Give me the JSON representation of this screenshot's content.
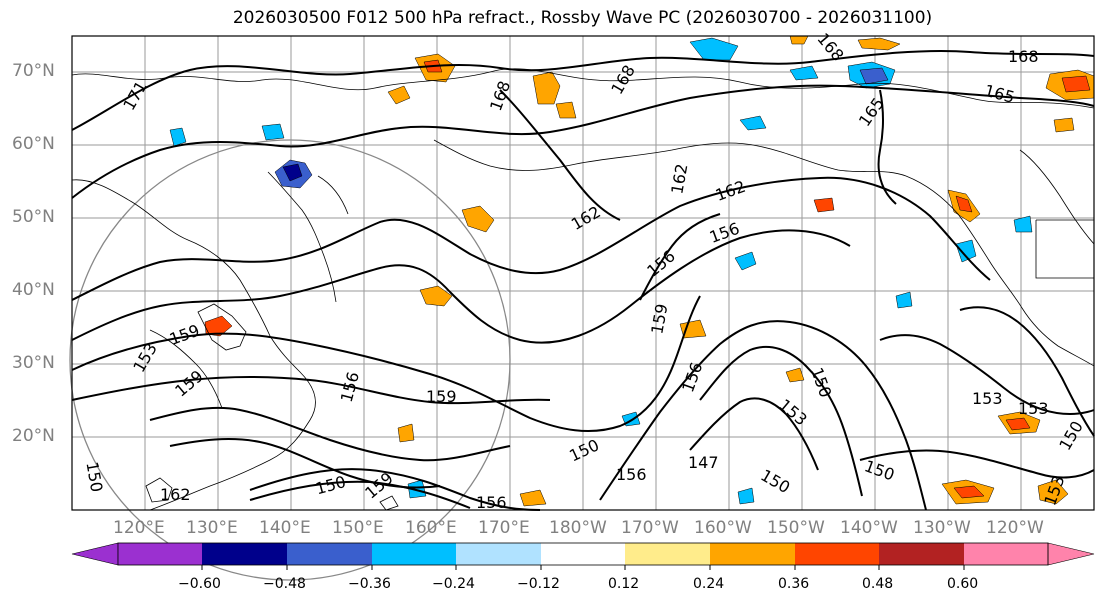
{
  "title": "2026030500 F012 500 hPa refract., Rossby Wave PC (2026030700 - 2026031100)",
  "lat_labels": [
    "70°N",
    "60°N",
    "50°N",
    "40°N",
    "30°N",
    "20°N"
  ],
  "lon_labels": [
    "120°E",
    "130°E",
    "140°E",
    "150°E",
    "160°E",
    "170°E",
    "180°W",
    "170°W",
    "160°W",
    "150°W",
    "140°W",
    "130°W",
    "120°W"
  ],
  "contour_labels": [
    "171",
    "168",
    "168",
    "168",
    "168",
    "165",
    "165",
    "162",
    "162",
    "162",
    "159",
    "159",
    "159",
    "159",
    "159",
    "156",
    "156",
    "156",
    "156",
    "156",
    "156",
    "153",
    "153",
    "153",
    "153",
    "150",
    "150",
    "150",
    "150",
    "150",
    "150",
    "147",
    "150",
    "162",
    "153"
  ],
  "colorbar": {
    "ticks": [
      "−0.60",
      "−0.48",
      "−0.36",
      "−0.24",
      "−0.12",
      "0.12",
      "0.24",
      "0.36",
      "0.48",
      "0.60"
    ],
    "colors": [
      "#9b30d0",
      "#00008b",
      "#3a5fcd",
      "#00bfff",
      "#b0e2ff",
      "#ffffff",
      "#ffec8b",
      "#ffa500",
      "#ff4500",
      "#b22222",
      "#ff83ab"
    ]
  }
}
